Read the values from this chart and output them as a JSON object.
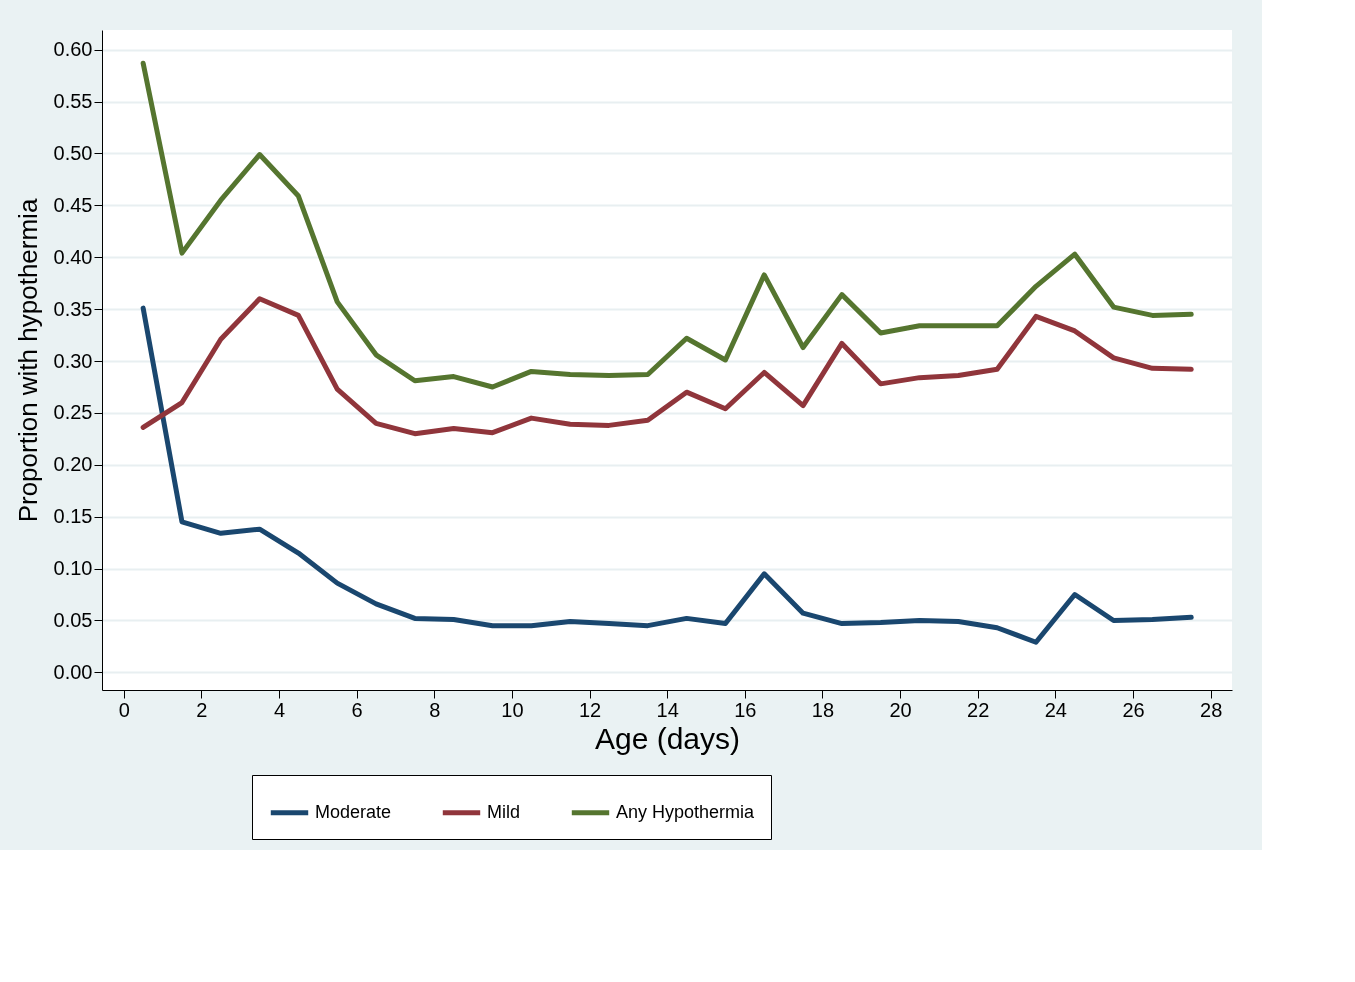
{
  "chart_data": {
    "type": "line",
    "xlabel": "Age (days)",
    "ylabel": "Proportion with hypothermia",
    "x": [
      0.5,
      1.5,
      2.5,
      3.5,
      4.5,
      5.5,
      6.5,
      7.5,
      8.5,
      9.5,
      10.5,
      11.5,
      12.5,
      13.5,
      14.5,
      15.5,
      16.5,
      17.5,
      18.5,
      19.5,
      20.5,
      21.5,
      22.5,
      23.5,
      24.5,
      25.5,
      26.5,
      27.5
    ],
    "series": [
      {
        "name": "Moderate",
        "color": "#1a476f",
        "values": [
          0.351,
          0.145,
          0.134,
          0.138,
          0.115,
          0.086,
          0.066,
          0.052,
          0.051,
          0.045,
          0.045,
          0.049,
          0.047,
          0.045,
          0.052,
          0.047,
          0.095,
          0.057,
          0.047,
          0.048,
          0.05,
          0.049,
          0.043,
          0.029,
          0.075,
          0.05,
          0.051,
          0.053
        ]
      },
      {
        "name": "Mild",
        "color": "#90353b",
        "values": [
          0.236,
          0.26,
          0.321,
          0.36,
          0.344,
          0.273,
          0.24,
          0.23,
          0.235,
          0.231,
          0.245,
          0.239,
          0.238,
          0.243,
          0.27,
          0.254,
          0.289,
          0.257,
          0.317,
          0.278,
          0.284,
          0.286,
          0.292,
          0.343,
          0.329,
          0.303,
          0.293,
          0.292
        ]
      },
      {
        "name": "Any Hypothermia",
        "color": "#55752f",
        "values": [
          0.587,
          0.404,
          0.455,
          0.499,
          0.459,
          0.357,
          0.306,
          0.281,
          0.285,
          0.275,
          0.29,
          0.287,
          0.286,
          0.287,
          0.322,
          0.301,
          0.383,
          0.313,
          0.364,
          0.327,
          0.334,
          0.334,
          0.334,
          0.372,
          0.403,
          0.352,
          0.344,
          0.345
        ]
      }
    ],
    "xlim": [
      -0.56,
      28.55
    ],
    "xticks": [
      0,
      2,
      4,
      6,
      8,
      10,
      12,
      14,
      16,
      18,
      20,
      22,
      24,
      26,
      28
    ],
    "ylim": [
      -0.017,
      0.619
    ],
    "yticks": [
      {
        "value": 0,
        "label": "0.00"
      },
      {
        "value": 0.05,
        "label": "0.05"
      },
      {
        "value": 0.1,
        "label": "0.10"
      },
      {
        "value": 0.15,
        "label": "0.15"
      },
      {
        "value": 0.2,
        "label": "0.20"
      },
      {
        "value": 0.25,
        "label": "0.25"
      },
      {
        "value": 0.3,
        "label": "0.30"
      },
      {
        "value": 0.35,
        "label": "0.35"
      },
      {
        "value": 0.4,
        "label": "0.40"
      },
      {
        "value": 0.45,
        "label": "0.45"
      },
      {
        "value": 0.5,
        "label": "0.50"
      },
      {
        "value": 0.55,
        "label": "0.55"
      },
      {
        "value": 0.6,
        "label": "0.60"
      }
    ],
    "grid": "y",
    "legend": "bottom",
    "marker": "none",
    "line_style": "solid"
  }
}
